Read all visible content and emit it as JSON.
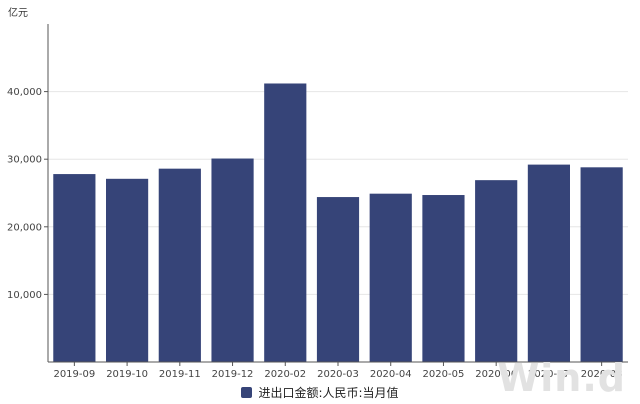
{
  "chart_data": {
    "type": "bar",
    "unit": "亿元",
    "categories": [
      "2019-09",
      "2019-10",
      "2019-11",
      "2019-12",
      "2020-02",
      "2020-03",
      "2020-04",
      "2020-05",
      "2020-06",
      "2020-07",
      "2020-08"
    ],
    "series": [
      {
        "name": "进出口金额:人民币:当月值",
        "values": [
          27800,
          27100,
          28600,
          30100,
          41200,
          24400,
          24900,
          24700,
          26900,
          29200,
          28800
        ]
      }
    ],
    "yticks": [
      "10,000",
      "20,000",
      "30,000",
      "40,000"
    ],
    "ylim": [
      0,
      50000
    ],
    "grid": true,
    "legend_position": "bottom-center",
    "colors": {
      "bar": "#364478",
      "axis": "#555555",
      "grid": "#e6e6e6"
    }
  },
  "watermark": "Win.d"
}
